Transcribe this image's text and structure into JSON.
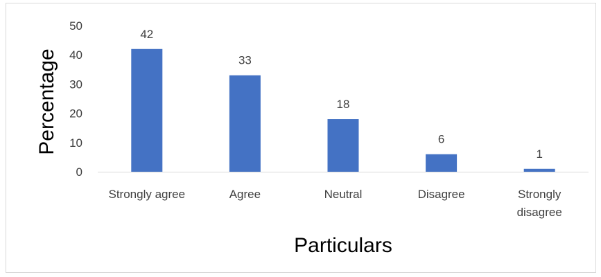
{
  "chart_data": {
    "type": "bar",
    "title": "",
    "xlabel": "Particulars",
    "ylabel": "Percentage",
    "categories": [
      [
        "Strongly agree"
      ],
      [
        "Agree"
      ],
      [
        "Neutral"
      ],
      [
        "Disagree"
      ],
      [
        "Strongly",
        "disagree"
      ]
    ],
    "values": [
      42,
      33,
      18,
      6,
      1
    ],
    "data_labels": [
      "42",
      "33",
      "18",
      "6",
      "1"
    ],
    "ylim": [
      0,
      50
    ],
    "yticks": [
      "0",
      "10",
      "20",
      "30",
      "40",
      "50"
    ],
    "grid": false,
    "legend": "none",
    "bar_color": "#4472c4",
    "axis_color": "#d9d9d9"
  }
}
